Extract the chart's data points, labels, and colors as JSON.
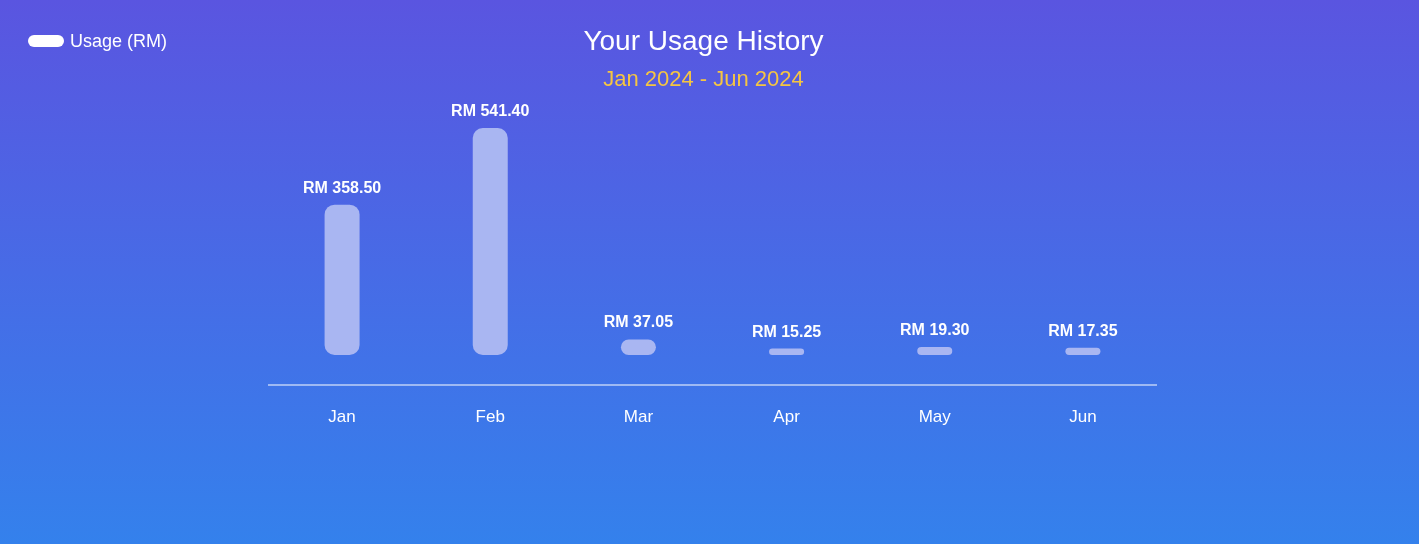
{
  "chart_data": {
    "type": "bar",
    "title": "Your Usage History",
    "subtitle": "Jan 2024 - Jun 2024",
    "categories": [
      "Jan",
      "Feb",
      "Mar",
      "Apr",
      "May",
      "Jun"
    ],
    "series": [
      {
        "name": "Usage (RM)",
        "color": "#a9b6f2",
        "values": [
          358.5,
          541.4,
          37.05,
          15.25,
          19.3,
          17.35
        ],
        "value_labels": [
          "RM 358.50",
          "RM 541.40",
          "RM 37.05",
          "RM 15.25",
          "RM 19.30",
          "RM 17.35"
        ]
      }
    ],
    "legend": "top left",
    "grid": false
  }
}
